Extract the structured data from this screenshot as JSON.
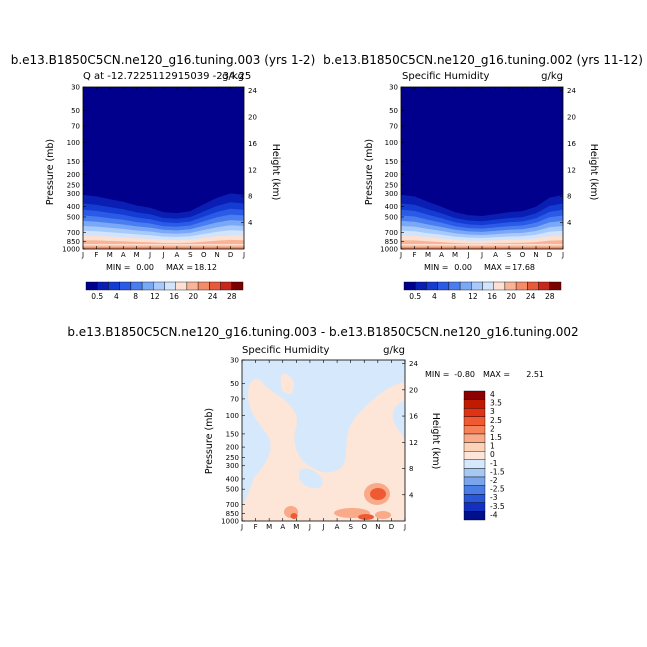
{
  "chart_data": [
    {
      "type": "heatmap",
      "title": "b.e13.B1850C5CN.ne120_g16.tuning.003 (yrs 1-2)",
      "subtitle_left": "Q at -12.7225112915039 -234.25",
      "subtitle_right": "g/kg",
      "ylabel_left": "Pressure (mb)",
      "ylabel_right": "Height (km)",
      "x_ticks": [
        "J",
        "F",
        "M",
        "A",
        "M",
        "J",
        "J",
        "A",
        "S",
        "O",
        "N",
        "D",
        "J"
      ],
      "pressure_ticks": [
        "30",
        "50",
        "70",
        "100",
        "150",
        "200",
        "250",
        "300",
        "400",
        "500",
        "700",
        "850",
        "1000"
      ],
      "height_ticks": [
        "24",
        "20",
        "16",
        "12",
        "8",
        "4"
      ],
      "stats": {
        "min_label": "MIN =",
        "min": "0.00",
        "max_label": "MAX =",
        "max": "18.12"
      },
      "colorbar_labels": [
        "0.5",
        "4",
        "8",
        "12",
        "16",
        "20",
        "24",
        "28"
      ],
      "boundary_pressure_mb": [
        310,
        320,
        340,
        360,
        390,
        410,
        450,
        460,
        440,
        380,
        330,
        300,
        310
      ]
    },
    {
      "type": "heatmap",
      "title": "b.e13.B1850C5CN.ne120_g16.tuning.002 (yrs 11-12)",
      "subtitle_left": "Specific Humidity",
      "subtitle_right": "g/kg",
      "ylabel_left": "Pressure (mb)",
      "ylabel_right": "Height (km)",
      "x_ticks": [
        "J",
        "F",
        "M",
        "A",
        "M",
        "J",
        "J",
        "A",
        "S",
        "O",
        "N",
        "D",
        "J"
      ],
      "pressure_ticks": [
        "30",
        "50",
        "70",
        "100",
        "150",
        "200",
        "250",
        "300",
        "400",
        "500",
        "700",
        "850",
        "1000"
      ],
      "height_ticks": [
        "24",
        "20",
        "16",
        "12",
        "8",
        "4"
      ],
      "stats": {
        "min_label": "MIN =",
        "min": "0.00",
        "max_label": "MAX =",
        "max": "17.68"
      },
      "colorbar_labels": [
        "0.5",
        "4",
        "8",
        "12",
        "16",
        "20",
        "24",
        "28"
      ],
      "boundary_pressure_mb": [
        310,
        320,
        360,
        400,
        450,
        480,
        490,
        470,
        450,
        440,
        400,
        330,
        310
      ]
    },
    {
      "type": "heatmap",
      "title": "b.e13.B1850C5CN.ne120_g16.tuning.003 - b.e13.B1850C5CN.ne120_g16.tuning.002",
      "subtitle_left": "Specific Humidity",
      "subtitle_right": "g/kg",
      "ylabel_left": "Pressure (mb)",
      "ylabel_right": "Height (km)",
      "x_ticks": [
        "J",
        "F",
        "M",
        "A",
        "M",
        "J",
        "J",
        "A",
        "S",
        "O",
        "N",
        "D",
        "J"
      ],
      "pressure_ticks": [
        "30",
        "50",
        "70",
        "100",
        "150",
        "200",
        "250",
        "300",
        "400",
        "500",
        "700",
        "850",
        "1000"
      ],
      "height_ticks": [
        "24",
        "20",
        "16",
        "12",
        "8",
        "4"
      ],
      "stats": {
        "min_label": "MIN =",
        "min": "-0.80",
        "max_label": "MAX =",
        "max": "2.51"
      },
      "colorbar_labels": [
        "4",
        "3.5",
        "3",
        "2.5",
        "2",
        "1.5",
        "1",
        "0",
        "-1",
        "-1.5",
        "-2",
        "-2.5",
        "-3",
        "-3.5",
        "-4"
      ]
    }
  ],
  "colors": {
    "abs_scale": [
      "#00008c",
      "#0a1eb4",
      "#143cd2",
      "#2a5ae6",
      "#4a7ef0",
      "#7aa8f6",
      "#a8cafa",
      "#d2e4fc",
      "#fde0d2",
      "#f9b496",
      "#f48c6a",
      "#e85a3c",
      "#c8281c",
      "#7a0000"
    ],
    "diff_scale": [
      "#8b0000",
      "#c01a00",
      "#e03214",
      "#f05a32",
      "#f5825a",
      "#f9aa88",
      "#fcd2b8",
      "#fde6d8",
      "#d6e8fb",
      "#a8c8f4",
      "#7aa4ec",
      "#4a7ee4",
      "#2a56d8",
      "#1430c0",
      "#00108c"
    ],
    "diff_background": "#fde6d8",
    "diff_negative": "#d6e8fb",
    "diff_positive_mid": "#f9aa88",
    "diff_positive_high": "#f05a32"
  }
}
